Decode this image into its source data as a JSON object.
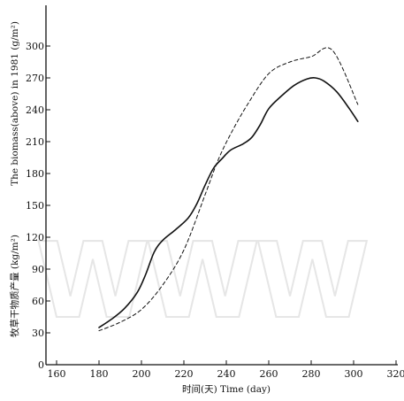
{
  "chart_data": {
    "type": "line",
    "x_ticks": [
      160,
      180,
      200,
      220,
      240,
      260,
      280,
      300,
      320
    ],
    "y_ticks": [
      0,
      30,
      60,
      90,
      120,
      150,
      180,
      210,
      240,
      270,
      300
    ],
    "xlim": [
      160,
      320
    ],
    "ylim": [
      0,
      300
    ],
    "xlabel": "时间(天)  Time (day)",
    "ylabel_top": "The biomass(above) in 1981 (g/m²)",
    "ylabel_bottom": "牧草干物质产量 (kg/m²)",
    "watermark": "WWW",
    "series": [
      {
        "style": "solid",
        "color": "#111111",
        "x": [
          180,
          186,
          192,
          198,
          202,
          206,
          210,
          216,
          222,
          226,
          230,
          234,
          238,
          242,
          248,
          252,
          256,
          260,
          266,
          272,
          278,
          282,
          286,
          292,
          298,
          302
        ],
        "y": [
          35,
          43,
          53,
          68,
          85,
          106,
          117,
          127,
          138,
          151,
          169,
          185,
          194,
          202,
          208,
          214,
          226,
          241,
          253,
          263,
          269,
          270,
          267,
          257,
          241,
          229
        ]
      },
      {
        "style": "dashed",
        "color": "#111111",
        "x": [
          180,
          190,
          200,
          210,
          220,
          230,
          236,
          242,
          250,
          260,
          270,
          280,
          290,
          302
        ],
        "y": [
          32,
          40,
          52,
          75,
          108,
          160,
          192,
          217,
          245,
          274,
          285,
          290,
          296,
          245
        ]
      }
    ]
  }
}
